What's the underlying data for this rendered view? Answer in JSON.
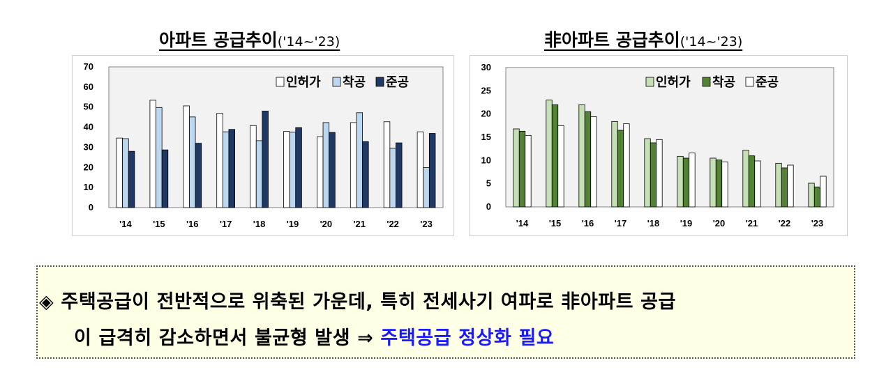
{
  "chart_data": [
    {
      "type": "bar",
      "title": "아파트 공급추이",
      "subtitle": "('14~'23)",
      "categories": [
        "'14",
        "'15",
        "'16",
        "'17",
        "'18",
        "'19",
        "'20",
        "'21",
        "'22",
        "'23"
      ],
      "series": [
        {
          "name": "인허가",
          "color": "#ffffff",
          "values": [
            34.6,
            53.4,
            50.6,
            46.9,
            40.8,
            37.9,
            35.2,
            42.3,
            42.7,
            37.7
          ]
        },
        {
          "name": "착공",
          "color": "#bdd7ee",
          "values": [
            34.3,
            49.8,
            45.1,
            37.7,
            33.3,
            37.5,
            42.3,
            47.2,
            29.5,
            19.9
          ]
        },
        {
          "name": "준공",
          "color": "#1f3864",
          "values": [
            28.0,
            28.7,
            32.0,
            38.9,
            48.0,
            39.8,
            37.4,
            32.8,
            32.2,
            36.9
          ]
        }
      ],
      "y_ticks": [
        "0",
        "10",
        "20",
        "30",
        "40",
        "50",
        "60",
        "70"
      ],
      "ylim": [
        0,
        70
      ],
      "legend_position": "top-right",
      "grid": false
    },
    {
      "type": "bar",
      "title": "非아파트 공급추이",
      "subtitle": "('14~'23)",
      "categories": [
        "'14",
        "'15",
        "'16",
        "'17",
        "'18",
        "'19",
        "'20",
        "'21",
        "'22",
        "'23"
      ],
      "series": [
        {
          "name": "인허가",
          "color": "#c5e0b4",
          "values": [
            16.8,
            23.0,
            22.0,
            18.4,
            14.7,
            10.9,
            10.5,
            12.2,
            9.4,
            5.1
          ]
        },
        {
          "name": "착공",
          "color": "#548235",
          "values": [
            16.3,
            22.0,
            20.5,
            16.5,
            13.8,
            10.5,
            10.1,
            11.0,
            8.4,
            4.3
          ]
        },
        {
          "name": "준공",
          "color": "#ffffff",
          "values": [
            15.4,
            17.5,
            19.4,
            17.9,
            14.5,
            11.6,
            9.7,
            9.9,
            9.0,
            6.6
          ]
        }
      ],
      "y_ticks": [
        "0",
        "5",
        "10",
        "15",
        "20",
        "25",
        "30"
      ],
      "ylim": [
        0,
        30
      ],
      "legend_position": "top-right",
      "grid": false
    }
  ],
  "note": {
    "bullet": "◈",
    "line1": "주택공급이 전반적으로 위축된 가운데, 특히 전세사기 여파로 非아파트 공급",
    "line2_prefix": "이 급격히 감소하면서 불균형 발생 ⇒ ",
    "line2_highlight": "주택공급 정상화 필요"
  }
}
